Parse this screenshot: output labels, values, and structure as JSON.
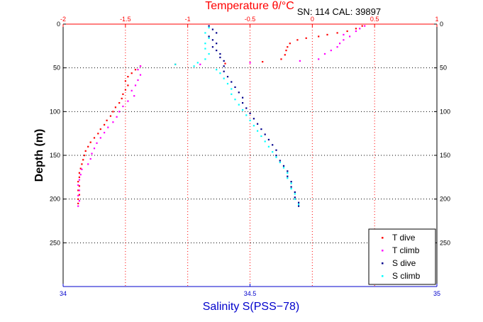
{
  "chart_data": {
    "type": "scatter",
    "title": "Temperature θ/°C",
    "subtitle": "SN: 114  CAL: 39897",
    "xlabel": "Salinity S(PSS−78)",
    "ylabel": "Depth (m)",
    "y_reversed": true,
    "ylim": [
      0,
      300
    ],
    "yticks": [
      0,
      50,
      100,
      150,
      200,
      250
    ],
    "salinity_axis": {
      "range": [
        34,
        35
      ],
      "ticks": [
        "34",
        "34.5",
        "35"
      ],
      "tick_values": [
        34,
        34.5,
        35
      ],
      "position": "bottom"
    },
    "temperature_axis": {
      "range": [
        -2,
        1
      ],
      "ticks": [
        "-2",
        "-1.5",
        "-1",
        "-0.5",
        "0",
        "0.5",
        "1"
      ],
      "tick_values": [
        -2,
        -1.5,
        -1,
        -0.5,
        0,
        0.5,
        1
      ],
      "position": "top"
    },
    "grid": true,
    "legend_position": "bottom-right",
    "series": [
      {
        "name": "T dive",
        "axis": "temperature",
        "color": "#ff0000",
        "points": [
          [
            0.4,
            2
          ],
          [
            0.35,
            5
          ],
          [
            0.28,
            8
          ],
          [
            0.2,
            10
          ],
          [
            0.12,
            12
          ],
          [
            0.05,
            14
          ],
          [
            -0.05,
            16
          ],
          [
            -0.12,
            18
          ],
          [
            -0.18,
            22
          ],
          [
            -0.2,
            26
          ],
          [
            -0.21,
            30
          ],
          [
            -0.22,
            35
          ],
          [
            -0.25,
            40
          ],
          [
            -0.4,
            43
          ],
          [
            -0.7,
            45
          ],
          [
            -1.1,
            46
          ],
          [
            -1.38,
            48
          ],
          [
            -1.42,
            52
          ],
          [
            -1.45,
            56
          ],
          [
            -1.48,
            60
          ],
          [
            -1.5,
            65
          ],
          [
            -1.48,
            70
          ],
          [
            -1.5,
            75
          ],
          [
            -1.52,
            80
          ],
          [
            -1.53,
            85
          ],
          [
            -1.55,
            90
          ],
          [
            -1.58,
            95
          ],
          [
            -1.6,
            100
          ],
          [
            -1.62,
            105
          ],
          [
            -1.65,
            110
          ],
          [
            -1.67,
            115
          ],
          [
            -1.7,
            120
          ],
          [
            -1.72,
            125
          ],
          [
            -1.75,
            130
          ],
          [
            -1.78,
            135
          ],
          [
            -1.8,
            140
          ],
          [
            -1.82,
            145
          ],
          [
            -1.83,
            150
          ],
          [
            -1.84,
            155
          ],
          [
            -1.85,
            160
          ],
          [
            -1.86,
            165
          ],
          [
            -1.87,
            170
          ],
          [
            -1.87,
            175
          ],
          [
            -1.88,
            180
          ],
          [
            -1.87,
            185
          ],
          [
            -1.88,
            190
          ],
          [
            -1.87,
            195
          ],
          [
            -1.88,
            200
          ],
          [
            -1.88,
            205
          ]
        ]
      },
      {
        "name": "T climb",
        "axis": "temperature",
        "color": "#ff00ff",
        "points": [
          [
            -1.88,
            208
          ],
          [
            -1.87,
            202
          ],
          [
            -1.88,
            196
          ],
          [
            -1.87,
            190
          ],
          [
            -1.88,
            184
          ],
          [
            -1.87,
            178
          ],
          [
            -1.86,
            172
          ],
          [
            -1.85,
            166
          ],
          [
            -1.8,
            160
          ],
          [
            -1.78,
            154
          ],
          [
            -1.77,
            148
          ],
          [
            -1.75,
            142
          ],
          [
            -1.73,
            136
          ],
          [
            -1.7,
            130
          ],
          [
            -1.67,
            124
          ],
          [
            -1.64,
            118
          ],
          [
            -1.6,
            112
          ],
          [
            -1.57,
            106
          ],
          [
            -1.55,
            100
          ],
          [
            -1.52,
            94
          ],
          [
            -1.48,
            88
          ],
          [
            -1.43,
            82
          ],
          [
            -1.45,
            76
          ],
          [
            -1.42,
            70
          ],
          [
            -1.4,
            64
          ],
          [
            -1.38,
            58
          ],
          [
            -1.4,
            52
          ],
          [
            -1.38,
            48
          ],
          [
            -0.9,
            46
          ],
          [
            -0.5,
            44
          ],
          [
            -0.1,
            42
          ],
          [
            0.05,
            40
          ],
          [
            0.1,
            34
          ],
          [
            0.15,
            30
          ],
          [
            0.2,
            26
          ],
          [
            0.22,
            22
          ],
          [
            0.25,
            18
          ],
          [
            0.3,
            14
          ],
          [
            0.25,
            12
          ],
          [
            0.35,
            8
          ],
          [
            0.38,
            5
          ],
          [
            0.42,
            2
          ]
        ]
      },
      {
        "name": "S dive",
        "axis": "salinity",
        "color": "#00008b",
        "points": [
          [
            34.39,
            2
          ],
          [
            34.4,
            6
          ],
          [
            34.41,
            10
          ],
          [
            34.39,
            14
          ],
          [
            34.4,
            18
          ],
          [
            34.41,
            22
          ],
          [
            34.4,
            26
          ],
          [
            34.41,
            30
          ],
          [
            34.42,
            34
          ],
          [
            34.42,
            38
          ],
          [
            34.43,
            42
          ],
          [
            34.43,
            48
          ],
          [
            34.43,
            54
          ],
          [
            34.44,
            60
          ],
          [
            34.45,
            66
          ],
          [
            34.46,
            72
          ],
          [
            34.47,
            78
          ],
          [
            34.48,
            84
          ],
          [
            34.48,
            90
          ],
          [
            34.49,
            96
          ],
          [
            34.5,
            102
          ],
          [
            34.51,
            108
          ],
          [
            34.52,
            114
          ],
          [
            34.53,
            120
          ],
          [
            34.54,
            126
          ],
          [
            34.55,
            132
          ],
          [
            34.56,
            138
          ],
          [
            34.57,
            144
          ],
          [
            34.57,
            150
          ],
          [
            34.58,
            156
          ],
          [
            34.59,
            162
          ],
          [
            34.6,
            168
          ],
          [
            34.6,
            174
          ],
          [
            34.61,
            180
          ],
          [
            34.61,
            186
          ],
          [
            34.62,
            192
          ],
          [
            34.62,
            198
          ],
          [
            34.63,
            204
          ],
          [
            34.63,
            208
          ]
        ]
      },
      {
        "name": "S climb",
        "axis": "salinity",
        "color": "#00ffff",
        "points": [
          [
            34.63,
            206
          ],
          [
            34.62,
            200
          ],
          [
            34.62,
            194
          ],
          [
            34.61,
            188
          ],
          [
            34.61,
            182
          ],
          [
            34.6,
            176
          ],
          [
            34.6,
            170
          ],
          [
            34.59,
            164
          ],
          [
            34.58,
            158
          ],
          [
            34.57,
            152
          ],
          [
            34.56,
            146
          ],
          [
            34.55,
            140
          ],
          [
            34.54,
            134
          ],
          [
            34.53,
            128
          ],
          [
            34.52,
            122
          ],
          [
            34.51,
            116
          ],
          [
            34.5,
            110
          ],
          [
            34.49,
            104
          ],
          [
            34.48,
            98
          ],
          [
            34.47,
            92
          ],
          [
            34.46,
            86
          ],
          [
            34.45,
            80
          ],
          [
            34.45,
            74
          ],
          [
            34.44,
            68
          ],
          [
            34.43,
            62
          ],
          [
            34.42,
            56
          ],
          [
            34.41,
            52
          ],
          [
            34.35,
            48
          ],
          [
            34.3,
            46
          ],
          [
            34.36,
            44
          ],
          [
            34.38,
            40
          ],
          [
            34.39,
            34
          ],
          [
            34.38,
            28
          ],
          [
            34.38,
            22
          ],
          [
            34.39,
            16
          ],
          [
            34.38,
            10
          ],
          [
            34.39,
            4
          ]
        ]
      }
    ]
  }
}
